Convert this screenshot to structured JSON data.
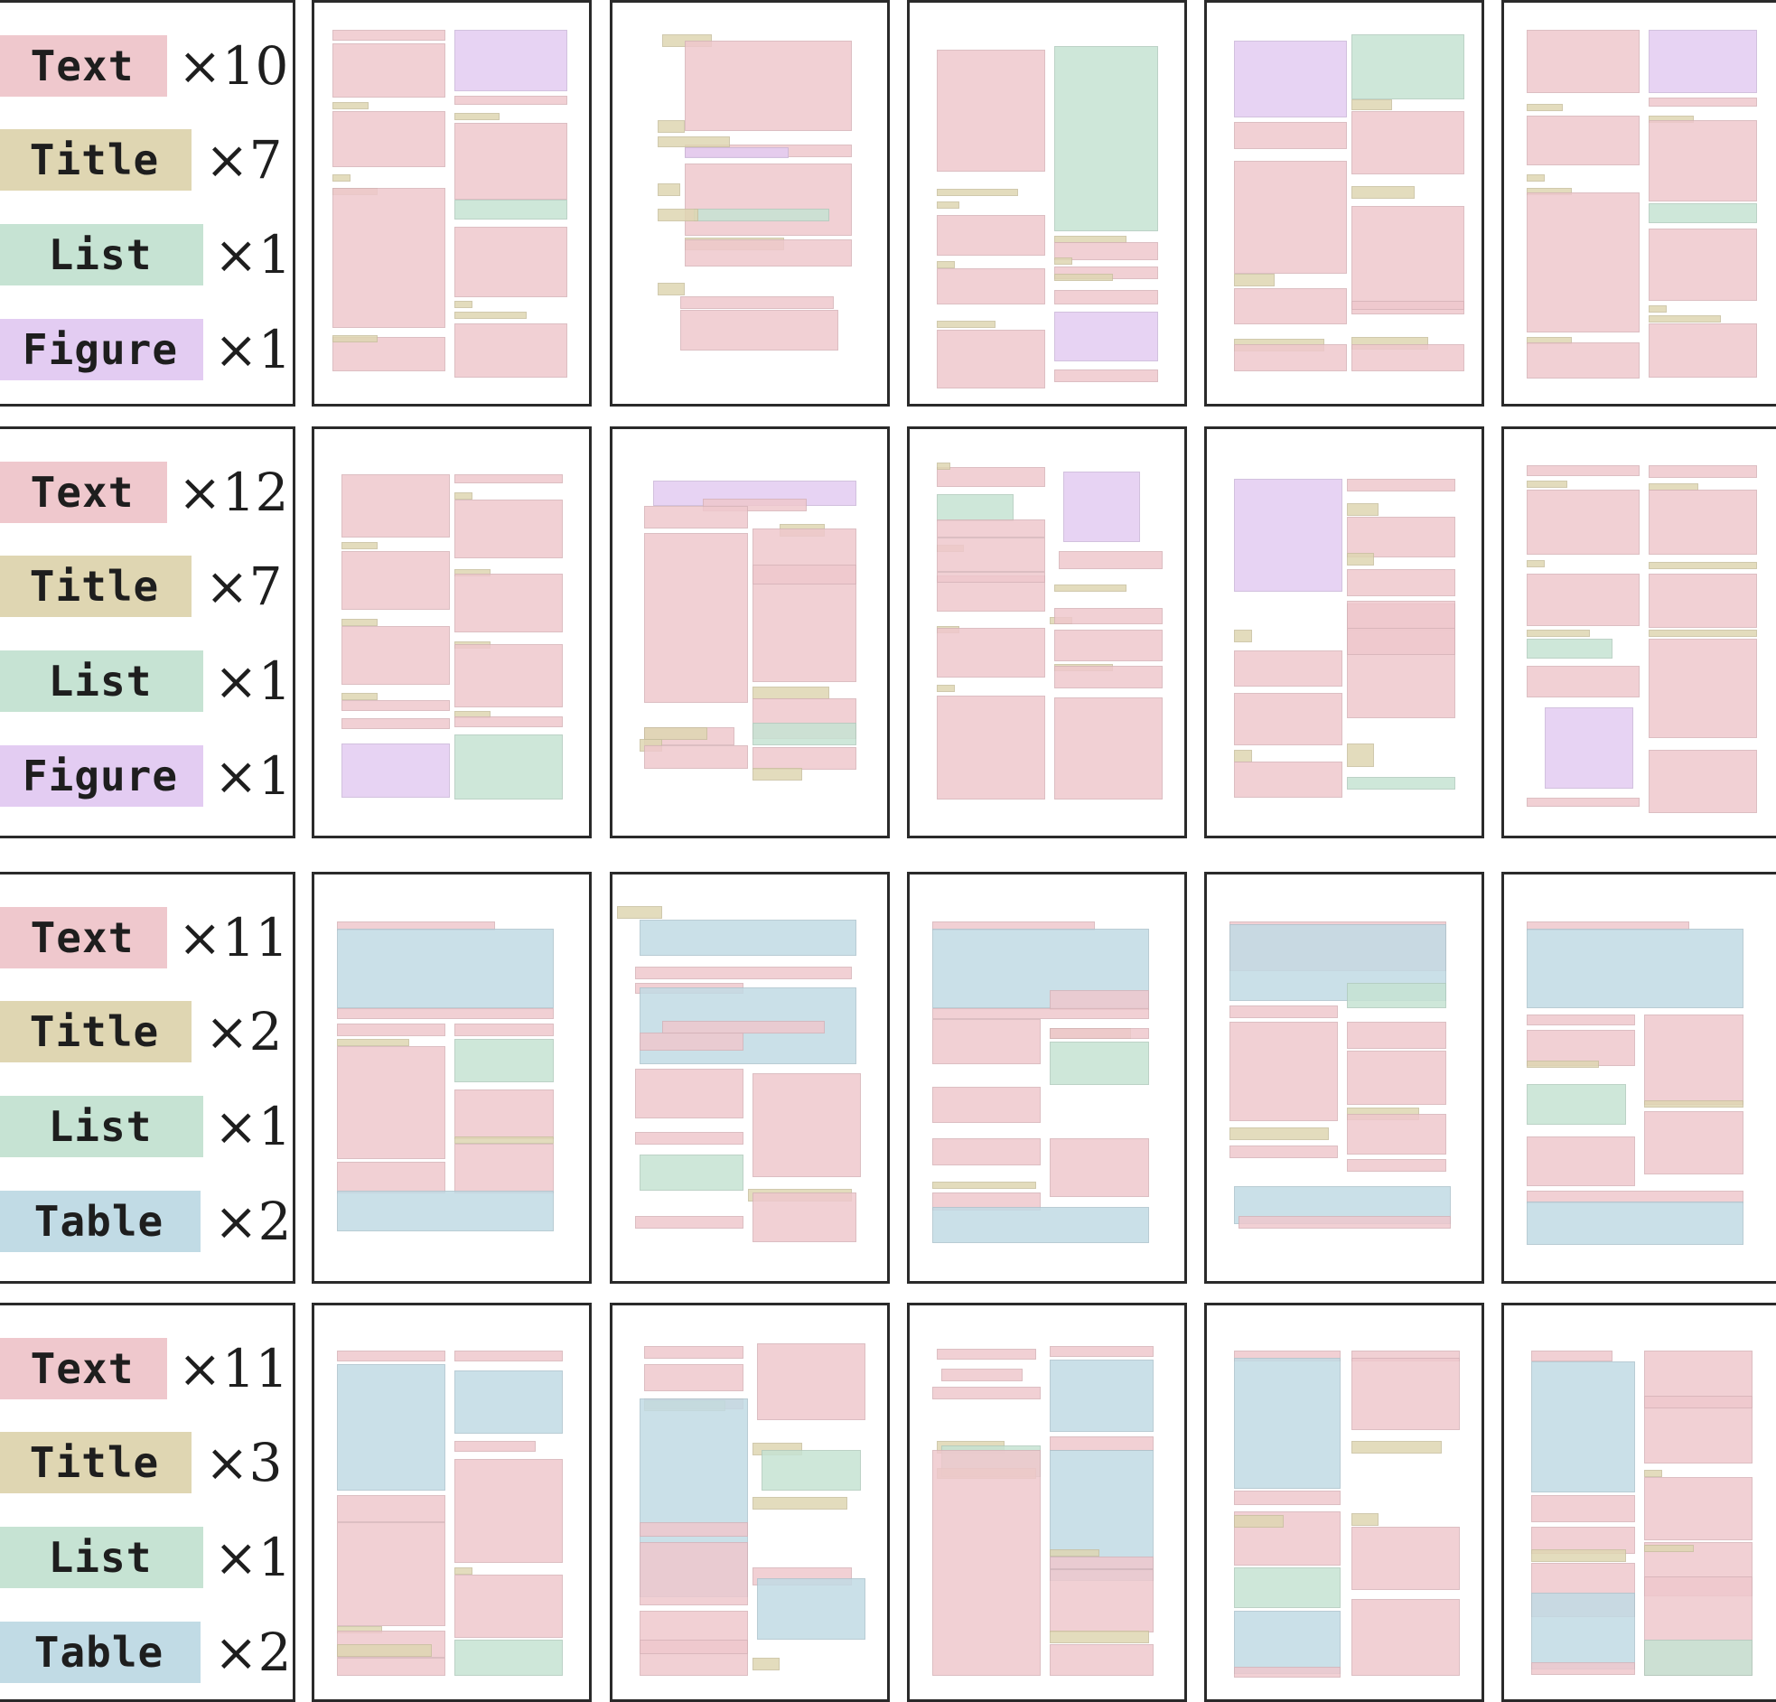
{
  "colors": {
    "Text": "#efc8cd",
    "Title": "#dfd6b2",
    "List": "#c6e3d3",
    "Figure": "#e3ccf2",
    "Table": "#c1dbe5"
  },
  "rows": [
    {
      "legend": [
        {
          "label": "Text",
          "count": "×10"
        },
        {
          "label": "Title",
          "count": "×7"
        },
        {
          "label": "List",
          "count": "×1"
        },
        {
          "label": "Figure",
          "count": "×1"
        }
      ]
    },
    {
      "legend": [
        {
          "label": "Text",
          "count": "×12"
        },
        {
          "label": "Title",
          "count": "×7"
        },
        {
          "label": "List",
          "count": "×1"
        },
        {
          "label": "Figure",
          "count": "×1"
        }
      ]
    },
    {
      "legend": [
        {
          "label": "Text",
          "count": "×11"
        },
        {
          "label": "Title",
          "count": "×2"
        },
        {
          "label": "List",
          "count": "×1"
        },
        {
          "label": "Table",
          "count": "×2"
        }
      ]
    },
    {
      "legend": [
        {
          "label": "Text",
          "count": "×11"
        },
        {
          "label": "Title",
          "count": "×3"
        },
        {
          "label": "List",
          "count": "×1"
        },
        {
          "label": "Table",
          "count": "×2"
        }
      ]
    }
  ]
}
